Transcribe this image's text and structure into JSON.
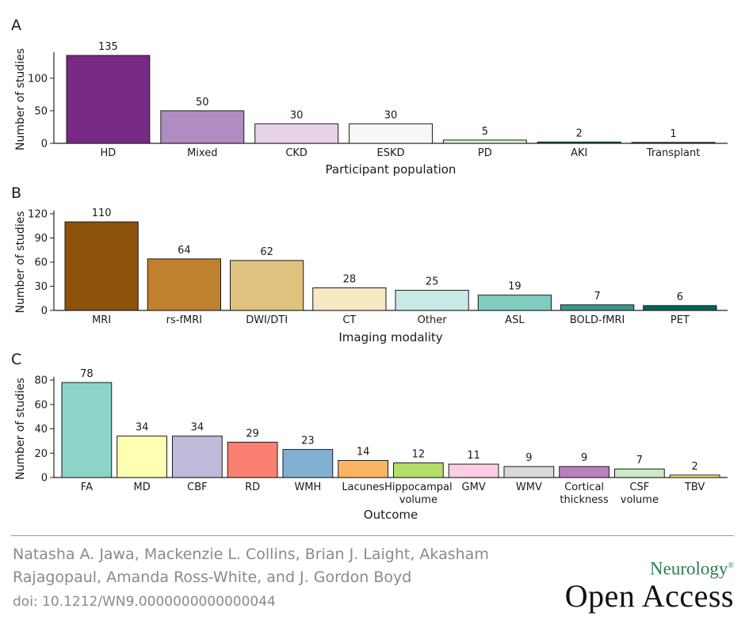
{
  "chart_data": [
    {
      "panel": "A",
      "type": "bar",
      "xlabel": "Participant population",
      "ylabel": "Number of studies",
      "categories": [
        "HD",
        "Mixed",
        "CKD",
        "ESKD",
        "PD",
        "AKI",
        "Transplant"
      ],
      "values": [
        135,
        50,
        30,
        30,
        5,
        2,
        1
      ],
      "labels": [
        "135",
        "50",
        "30",
        "30",
        "5",
        "2",
        "1"
      ],
      "colors": [
        "#762a83",
        "#af8dc3",
        "#e7d4e8",
        "#f7f7f7",
        "#d9f0d3",
        "#1b7837",
        "#1b7837"
      ],
      "ylim": [
        0,
        135
      ],
      "yticks": [
        0,
        50,
        100
      ],
      "grid": false
    },
    {
      "panel": "B",
      "type": "bar",
      "xlabel": "Imaging modality",
      "ylabel": "Number of studies",
      "categories": [
        "MRI",
        "rs-fMRI",
        "DWI/DTI",
        "CT",
        "Other",
        "ASL",
        "BOLD-fMRI",
        "PET"
      ],
      "values": [
        110,
        64,
        62,
        28,
        25,
        19,
        7,
        6
      ],
      "labels": [
        "110",
        "64",
        "62",
        "28",
        "25",
        "19",
        "7",
        "6"
      ],
      "colors": [
        "#8c510a",
        "#bf812d",
        "#dfc27d",
        "#f6e8c3",
        "#c7eae5",
        "#80cdc1",
        "#35978f",
        "#01665e"
      ],
      "ylim": [
        0,
        120
      ],
      "yticks": [
        0,
        30,
        60,
        90,
        120
      ],
      "grid": false
    },
    {
      "panel": "C",
      "type": "bar",
      "xlabel": "Outcome",
      "ylabel": "Number of studies",
      "categories": [
        "FA",
        "MD",
        "CBF",
        "RD",
        "WMH",
        "Lacunes",
        "Hippocampal volume",
        "GMV",
        "WMV",
        "Cortical thickness",
        "CSF volume",
        "TBV"
      ],
      "values": [
        78,
        34,
        34,
        29,
        23,
        14,
        12,
        11,
        9,
        9,
        7,
        2
      ],
      "labels": [
        "78",
        "34",
        "34",
        "29",
        "23",
        "14",
        "12",
        "11",
        "9",
        "9",
        "7",
        "2"
      ],
      "colors": [
        "#8dd3c7",
        "#ffffb3",
        "#bebada",
        "#fb8072",
        "#80b1d3",
        "#fdb462",
        "#b3de69",
        "#fccde5",
        "#d9d9d9",
        "#bc80bd",
        "#ccebc5",
        "#ffed6f"
      ],
      "ylim": [
        0,
        80
      ],
      "yticks": [
        0,
        20,
        40,
        60,
        80
      ],
      "grid": false
    }
  ],
  "footer": {
    "authors": "Natasha A. Jawa, Mackenzie L. Collins, Brian J. Laight, Akasham Rajagopaul, Amanda Ross-White, and J. Gordon Boyd",
    "doi": "doi: 10.1212/WN9.0000000000000044",
    "journal_top": "Neurology",
    "journal_mark": "®",
    "journal_bottom": "Open Access"
  }
}
